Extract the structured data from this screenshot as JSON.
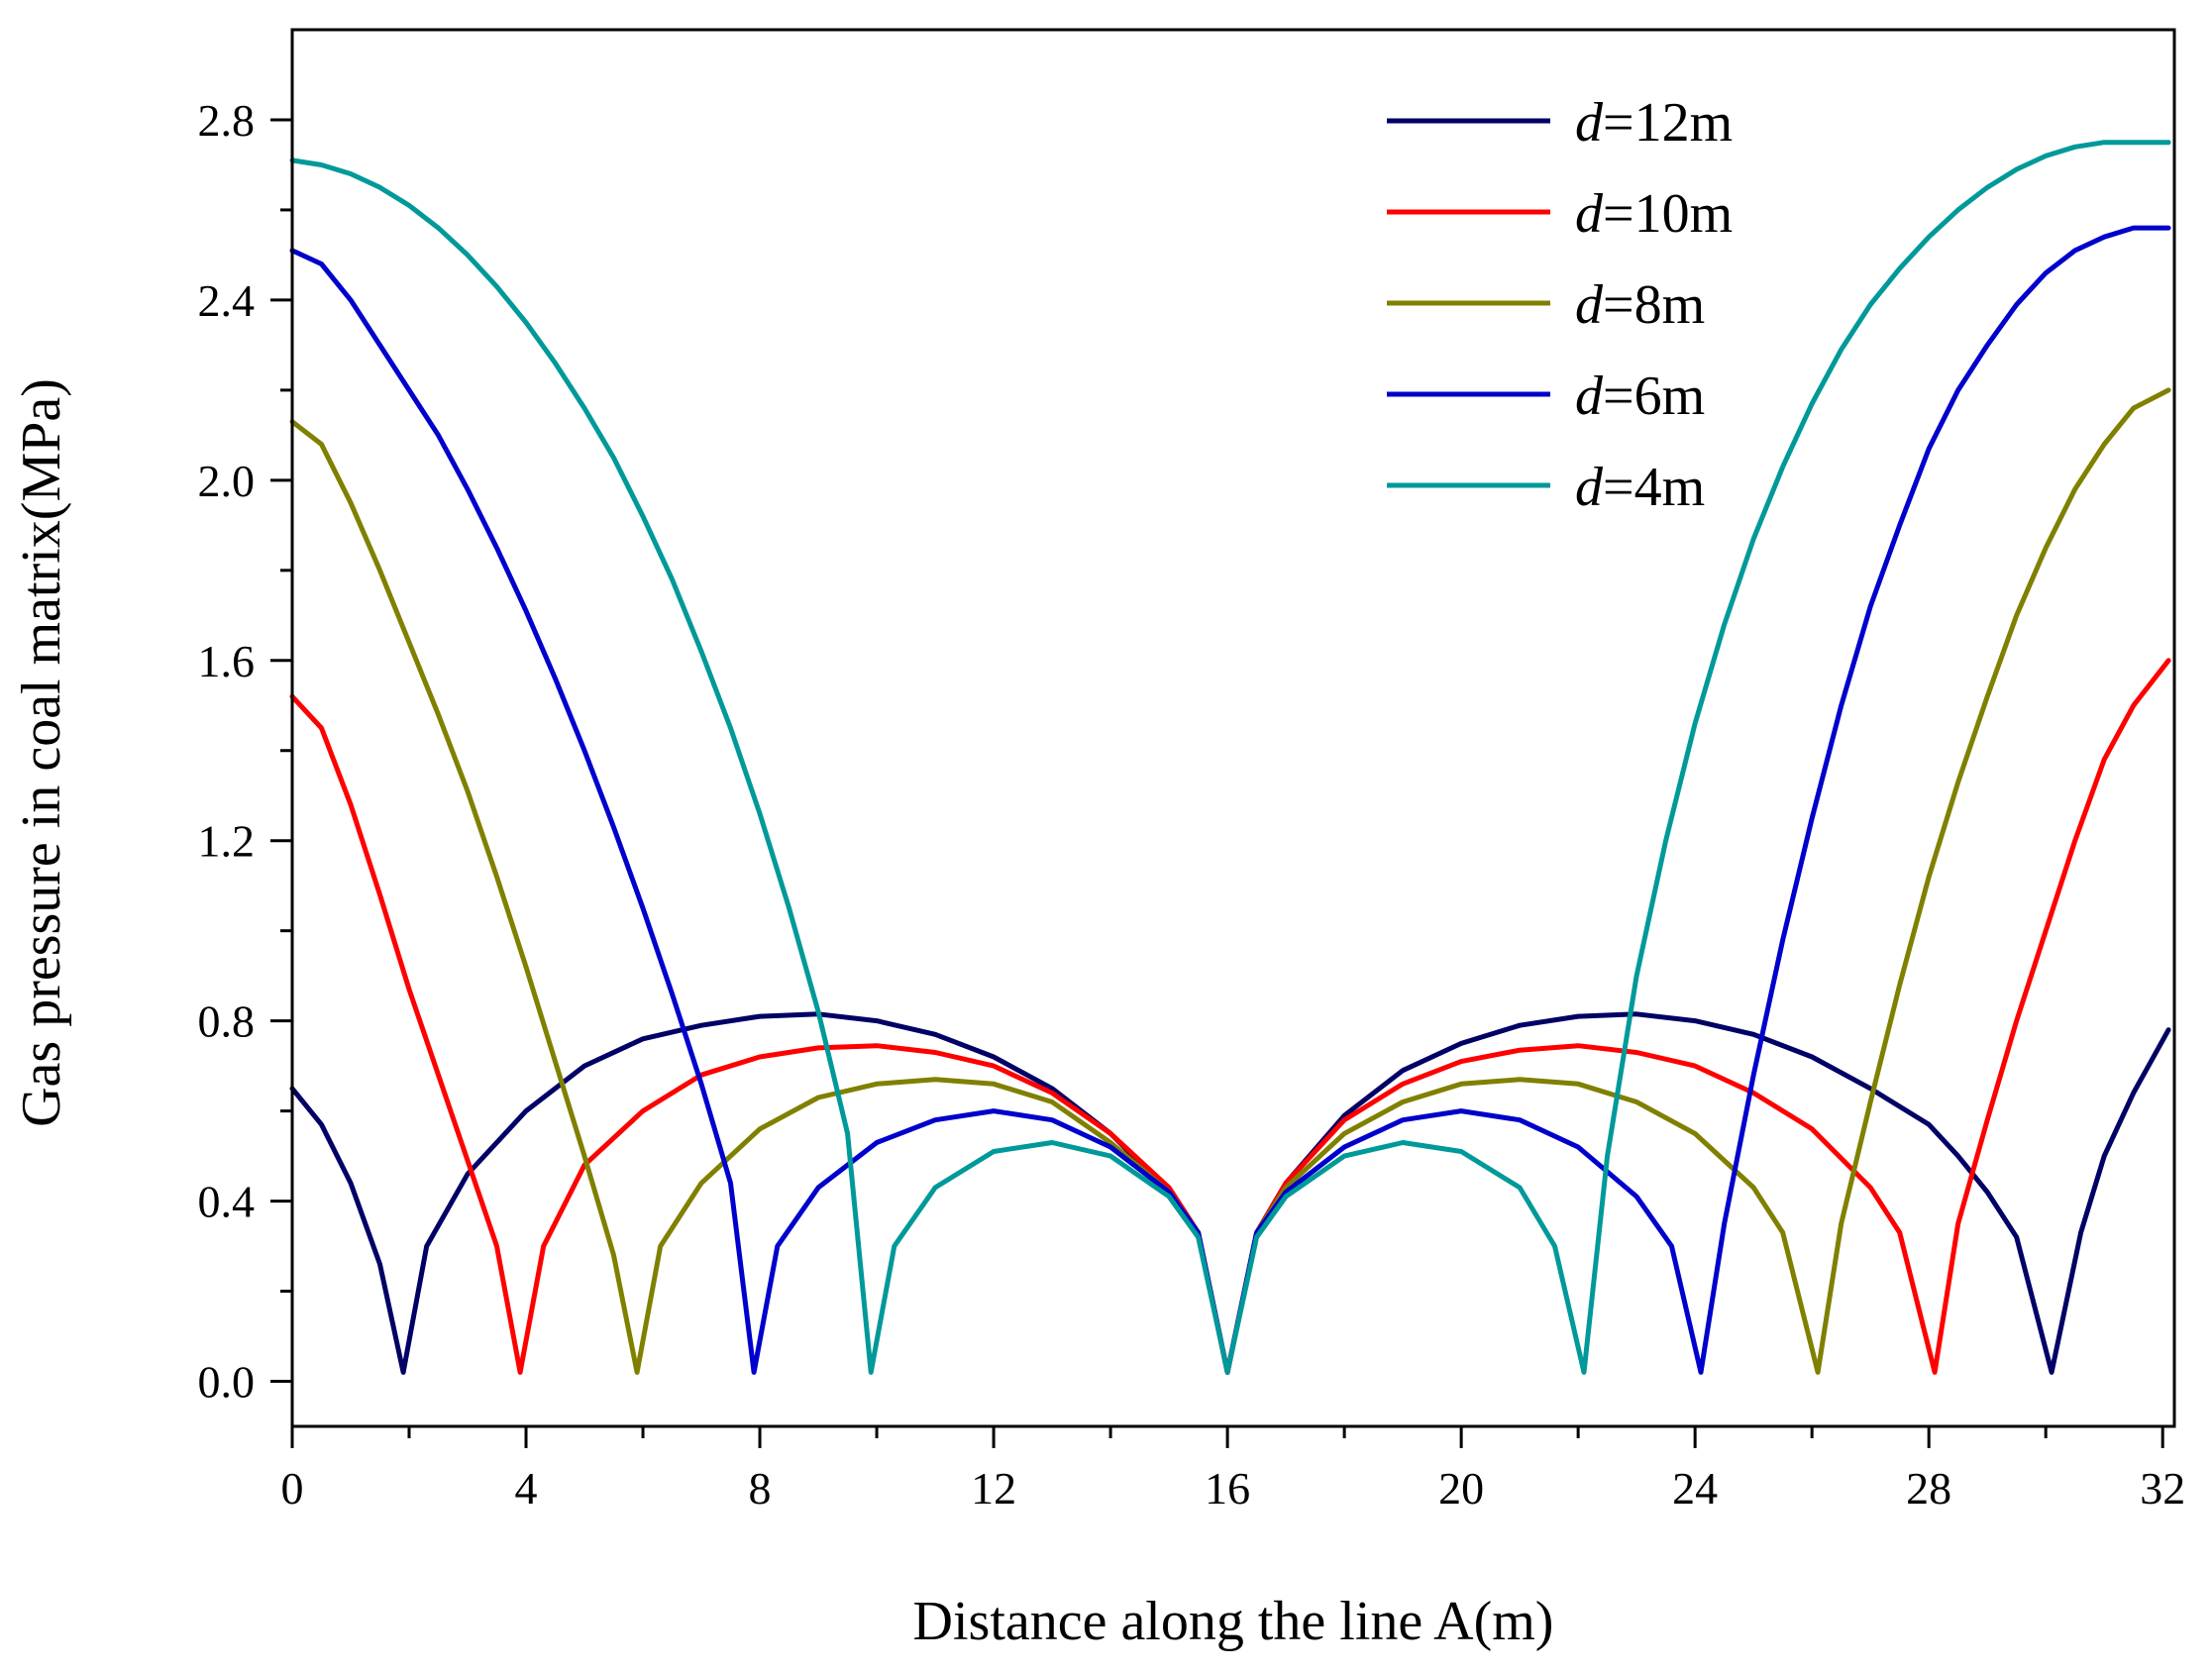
{
  "chart_data": {
    "type": "line",
    "title": "",
    "xlabel": "Distance along the  line A(m)",
    "ylabel": "Gas pressure in coal matrix(MPa)",
    "xlim": [
      0,
      32.2
    ],
    "ylim": [
      -0.1,
      3.0
    ],
    "xticks": [
      "0",
      "4",
      "8",
      "12",
      "16",
      "20",
      "24",
      "28",
      "32"
    ],
    "yticks": [
      "0.0",
      "0.4",
      "0.8",
      "1.2",
      "1.6",
      "2.0",
      "2.4",
      "2.8"
    ],
    "grid": false,
    "legend_position": "top-right",
    "series": [
      {
        "name": "d=12m",
        "legend_var": "d",
        "legend_rest": "=12m",
        "color": "#000066",
        "x": [
          0,
          0.5,
          1.0,
          1.5,
          1.9,
          2.3,
          3,
          4,
          5,
          6,
          7,
          8,
          9,
          10,
          11,
          12,
          13,
          14,
          15,
          15.5,
          16,
          16.5,
          17,
          18,
          19,
          20,
          21,
          22,
          23,
          24,
          25,
          26,
          27,
          28,
          28.5,
          29,
          29.5,
          30.1,
          30.6,
          31,
          31.5,
          32.1
        ],
        "y": [
          0.65,
          0.57,
          0.44,
          0.26,
          0.02,
          0.3,
          0.46,
          0.6,
          0.7,
          0.76,
          0.79,
          0.81,
          0.815,
          0.8,
          0.77,
          0.72,
          0.65,
          0.55,
          0.42,
          0.33,
          0.02,
          0.33,
          0.44,
          0.59,
          0.69,
          0.75,
          0.79,
          0.81,
          0.815,
          0.8,
          0.77,
          0.72,
          0.65,
          0.57,
          0.5,
          0.42,
          0.32,
          0.02,
          0.33,
          0.5,
          0.64,
          0.78
        ]
      },
      {
        "name": "d=10m",
        "legend_var": "d",
        "legend_rest": "=10m",
        "color": "#ff0000",
        "x": [
          0,
          0.5,
          1.0,
          1.5,
          2.0,
          2.5,
          3.0,
          3.5,
          3.9,
          4.3,
          5,
          6,
          7,
          8,
          9,
          10,
          11,
          12,
          13,
          14,
          15,
          15.5,
          16,
          16.5,
          17,
          18,
          19,
          20,
          21,
          22,
          23,
          24,
          25,
          26,
          27,
          27.5,
          28.1,
          28.5,
          29,
          29.5,
          30,
          30.5,
          31,
          31.5,
          32.1
        ],
        "y": [
          1.52,
          1.45,
          1.28,
          1.08,
          0.87,
          0.68,
          0.49,
          0.3,
          0.02,
          0.3,
          0.48,
          0.6,
          0.68,
          0.72,
          0.74,
          0.745,
          0.73,
          0.7,
          0.64,
          0.55,
          0.43,
          0.33,
          0.02,
          0.33,
          0.44,
          0.58,
          0.66,
          0.71,
          0.735,
          0.745,
          0.73,
          0.7,
          0.64,
          0.56,
          0.43,
          0.33,
          0.02,
          0.35,
          0.58,
          0.8,
          1.0,
          1.2,
          1.38,
          1.5,
          1.6
        ]
      },
      {
        "name": "d=8m",
        "legend_var": "d",
        "legend_rest": "=8m",
        "color": "#808000",
        "x": [
          0,
          0.5,
          1.0,
          1.5,
          2.0,
          2.5,
          3.0,
          3.5,
          4.0,
          4.5,
          5.0,
          5.5,
          5.9,
          6.3,
          7,
          8,
          9,
          10,
          11,
          12,
          13,
          14,
          15,
          15.5,
          16,
          16.5,
          17,
          18,
          19,
          20,
          21,
          22,
          23,
          24,
          25,
          25.5,
          26.1,
          26.5,
          27,
          27.5,
          28,
          28.5,
          29,
          29.5,
          30,
          30.5,
          31,
          31.5,
          32.1
        ],
        "y": [
          2.13,
          2.08,
          1.95,
          1.8,
          1.64,
          1.48,
          1.31,
          1.12,
          0.92,
          0.71,
          0.5,
          0.28,
          0.02,
          0.3,
          0.44,
          0.56,
          0.63,
          0.66,
          0.67,
          0.66,
          0.62,
          0.53,
          0.42,
          0.33,
          0.02,
          0.33,
          0.43,
          0.55,
          0.62,
          0.66,
          0.67,
          0.66,
          0.62,
          0.55,
          0.43,
          0.33,
          0.02,
          0.35,
          0.62,
          0.88,
          1.12,
          1.33,
          1.52,
          1.7,
          1.85,
          1.98,
          2.08,
          2.16,
          2.2
        ]
      },
      {
        "name": "d=6m",
        "legend_var": "d",
        "legend_rest": "=6m",
        "color": "#0000cc",
        "x": [
          0,
          0.5,
          1.0,
          1.5,
          2.0,
          2.5,
          3.0,
          3.5,
          4.0,
          4.5,
          5.0,
          5.5,
          6.0,
          6.5,
          7.0,
          7.5,
          7.9,
          8.3,
          9,
          10,
          11,
          12,
          13,
          14,
          15,
          15.5,
          16,
          16.5,
          17,
          18,
          19,
          20,
          21,
          22,
          23,
          23.6,
          24.1,
          24.5,
          25,
          25.5,
          26,
          26.5,
          27,
          27.5,
          28,
          28.5,
          29,
          29.5,
          30,
          30.5,
          31,
          31.5,
          32.1
        ],
        "y": [
          2.51,
          2.48,
          2.4,
          2.3,
          2.2,
          2.1,
          1.98,
          1.85,
          1.71,
          1.56,
          1.4,
          1.23,
          1.05,
          0.86,
          0.66,
          0.44,
          0.02,
          0.3,
          0.43,
          0.53,
          0.58,
          0.6,
          0.58,
          0.52,
          0.42,
          0.33,
          0.02,
          0.33,
          0.42,
          0.52,
          0.58,
          0.6,
          0.58,
          0.52,
          0.41,
          0.3,
          0.02,
          0.35,
          0.68,
          0.98,
          1.25,
          1.5,
          1.72,
          1.9,
          2.07,
          2.2,
          2.3,
          2.39,
          2.46,
          2.51,
          2.54,
          2.56,
          2.56
        ]
      },
      {
        "name": "d=4m",
        "legend_var": "d",
        "legend_rest": "=4m",
        "color": "#009999",
        "x": [
          0,
          0.5,
          1.0,
          1.5,
          2.0,
          2.5,
          3.0,
          3.5,
          4.0,
          4.5,
          5.0,
          5.5,
          6.0,
          6.5,
          7.0,
          7.5,
          8.0,
          8.5,
          9.0,
          9.5,
          9.9,
          10.3,
          11,
          12,
          13,
          14,
          15,
          15.5,
          16,
          16.5,
          17,
          18,
          19,
          20,
          21,
          21.6,
          22.1,
          22.5,
          23,
          23.5,
          24,
          24.5,
          25,
          25.5,
          26,
          26.5,
          27,
          27.5,
          28,
          28.5,
          29,
          29.5,
          30,
          30.5,
          31,
          31.5,
          32.1
        ],
        "y": [
          2.71,
          2.7,
          2.68,
          2.65,
          2.61,
          2.56,
          2.5,
          2.43,
          2.35,
          2.26,
          2.16,
          2.05,
          1.92,
          1.78,
          1.62,
          1.45,
          1.26,
          1.05,
          0.82,
          0.55,
          0.02,
          0.3,
          0.43,
          0.51,
          0.53,
          0.5,
          0.41,
          0.32,
          0.02,
          0.32,
          0.41,
          0.5,
          0.53,
          0.51,
          0.43,
          0.3,
          0.02,
          0.5,
          0.9,
          1.2,
          1.46,
          1.68,
          1.87,
          2.03,
          2.17,
          2.29,
          2.39,
          2.47,
          2.54,
          2.6,
          2.65,
          2.69,
          2.72,
          2.74,
          2.75,
          2.75,
          2.75
        ]
      }
    ]
  }
}
